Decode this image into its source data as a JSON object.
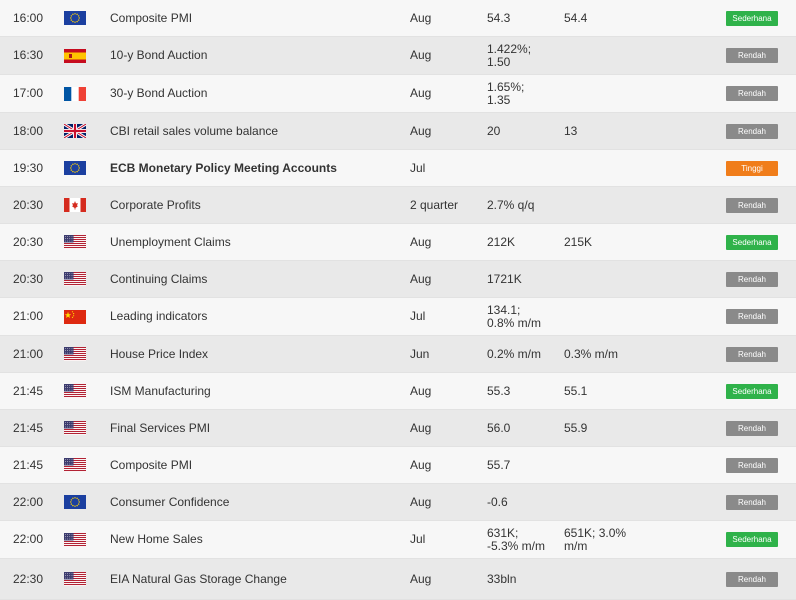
{
  "colors": {
    "rendah": "#8a8a8a",
    "sederhana": "#2fb24a",
    "tinggi": "#f07d1a"
  },
  "rows": [
    {
      "time": "16:00",
      "flag": "eu",
      "event": "Composite PMI",
      "bold": false,
      "period": "Aug",
      "prev": "54.3",
      "forecast": "54.4",
      "impact": "Sederhana",
      "level": "sederhana"
    },
    {
      "time": "16:30",
      "flag": "es",
      "event": "10-y Bond Auction",
      "bold": false,
      "period": "Aug",
      "prev": "1.422%;\n1.50",
      "forecast": "",
      "impact": "Rendah",
      "level": "rendah"
    },
    {
      "time": "17:00",
      "flag": "fr",
      "event": "30-y Bond Auction",
      "bold": false,
      "period": "Aug",
      "prev": "1.65%;\n1.35",
      "forecast": "",
      "impact": "Rendah",
      "level": "rendah"
    },
    {
      "time": "18:00",
      "flag": "gb",
      "event": "CBI retail sales volume balance",
      "bold": false,
      "period": "Aug",
      "prev": "20",
      "forecast": "13",
      "impact": "Rendah",
      "level": "rendah"
    },
    {
      "time": "19:30",
      "flag": "eu",
      "event": "ECB Monetary Policy Meeting Accounts",
      "bold": true,
      "period": "Jul",
      "prev": "",
      "forecast": "",
      "impact": "Tinggi",
      "level": "tinggi"
    },
    {
      "time": "20:30",
      "flag": "ca",
      "event": "Corporate Profits",
      "bold": false,
      "period": "2 quarter",
      "prev": "2.7% q/q",
      "forecast": "",
      "impact": "Rendah",
      "level": "rendah"
    },
    {
      "time": "20:30",
      "flag": "us",
      "event": "Unemployment Claims",
      "bold": false,
      "period": "Aug",
      "prev": "212K",
      "forecast": "215K",
      "impact": "Sederhana",
      "level": "sederhana"
    },
    {
      "time": "20:30",
      "flag": "us",
      "event": "Continuing Claims",
      "bold": false,
      "period": "Aug",
      "prev": "1721K",
      "forecast": "",
      "impact": "Rendah",
      "level": "rendah"
    },
    {
      "time": "21:00",
      "flag": "cn",
      "event": "Leading indicators",
      "bold": false,
      "period": "Jul",
      "prev": "134.1;\n0.8% m/m",
      "forecast": "",
      "impact": "Rendah",
      "level": "rendah"
    },
    {
      "time": "21:00",
      "flag": "us",
      "event": "House Price Index",
      "bold": false,
      "period": "Jun",
      "prev": "0.2% m/m",
      "forecast": "0.3% m/m",
      "impact": "Rendah",
      "level": "rendah"
    },
    {
      "time": "21:45",
      "flag": "us",
      "event": "ISM Manufacturing",
      "bold": false,
      "period": "Aug",
      "prev": "55.3",
      "forecast": "55.1",
      "impact": "Sederhana",
      "level": "sederhana"
    },
    {
      "time": "21:45",
      "flag": "us",
      "event": "Final Services PMI",
      "bold": false,
      "period": "Aug",
      "prev": "56.0",
      "forecast": "55.9",
      "impact": "Rendah",
      "level": "rendah"
    },
    {
      "time": "21:45",
      "flag": "us",
      "event": "Composite PMI",
      "bold": false,
      "period": "Aug",
      "prev": "55.7",
      "forecast": "",
      "impact": "Rendah",
      "level": "rendah"
    },
    {
      "time": "22:00",
      "flag": "eu",
      "event": "Consumer Confidence",
      "bold": false,
      "period": "Aug",
      "prev": "-0.6",
      "forecast": "",
      "impact": "Rendah",
      "level": "rendah"
    },
    {
      "time": "22:00",
      "flag": "us",
      "event": "New Home Sales",
      "bold": false,
      "period": "Jul",
      "prev": "631K;\n-5.3% m/m",
      "forecast": "651K; 3.0%\nm/m",
      "impact": "Sederhana",
      "level": "sederhana"
    },
    {
      "time": "22:30",
      "flag": "us",
      "event": "EIA Natural Gas Storage Change",
      "bold": false,
      "period": "Aug",
      "prev": "33bln",
      "forecast": "",
      "impact": "Rendah",
      "level": "rendah"
    }
  ]
}
